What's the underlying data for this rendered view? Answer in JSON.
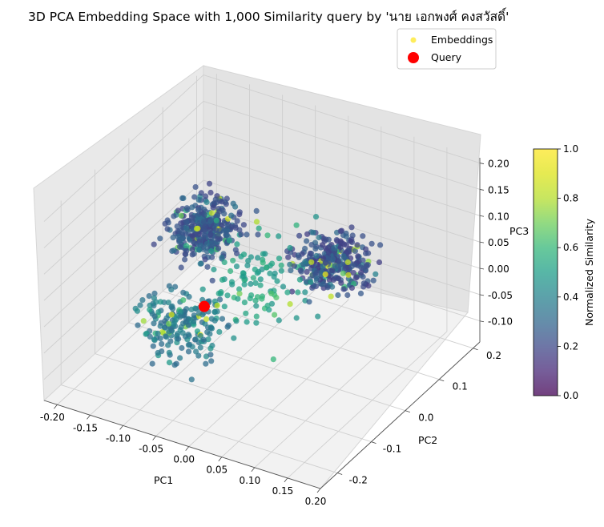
{
  "chart_data": {
    "type": "scatter",
    "projection": "3d",
    "title": "3D PCA Embedding Space with 1,000 Similarity query by 'นาย เอกพงศ์ คงสวัสดิ์'",
    "xlabel": "PC1",
    "ylabel": "PC2",
    "zlabel": "PC3",
    "xlim": [
      -0.22,
      0.2
    ],
    "ylim": [
      -0.25,
      0.22
    ],
    "zlim": [
      -0.14,
      0.21
    ],
    "xticks": [
      "-0.20",
      "-0.15",
      "-0.10",
      "-0.05",
      "0.00",
      "0.05",
      "0.10",
      "0.15",
      "0.20"
    ],
    "yticks": [
      "-0.2",
      "-0.1",
      "0.0",
      "0.1",
      "0.2"
    ],
    "zticks": [
      "-0.10",
      "-0.05",
      "0.00",
      "0.05",
      "0.10",
      "0.15",
      "0.20"
    ],
    "grid": true,
    "colormap": "viridis",
    "colorbar": {
      "label": "Normalized Similarity",
      "range": [
        0.0,
        1.0
      ],
      "ticks": [
        "0.0",
        "0.2",
        "0.4",
        "0.6",
        "0.8",
        "1.0"
      ]
    },
    "legend": {
      "placement": "top-right",
      "entries": [
        {
          "label": "Embeddings",
          "marker": "circle",
          "color": "#fde725"
        },
        {
          "label": "Query",
          "marker": "circle",
          "color": "#ff0000"
        }
      ]
    },
    "query": {
      "name": "Query",
      "x": -0.09,
      "y": -0.03,
      "z": -0.04,
      "color": "#ff0000"
    },
    "series": [
      {
        "name": "Embeddings",
        "point_count": 1000,
        "clusters": [
          {
            "center": [
              -0.12,
              0.03,
              0.06
            ],
            "spread": [
              0.03,
              0.04,
              0.03
            ],
            "count": 360,
            "similarity": 0.18
          },
          {
            "center": [
              0.06,
              0.06,
              0.05
            ],
            "spread": [
              0.035,
              0.04,
              0.03
            ],
            "count": 330,
            "similarity": 0.16
          },
          {
            "center": [
              -0.08,
              -0.12,
              -0.02
            ],
            "spread": [
              0.04,
              0.04,
              0.04
            ],
            "count": 190,
            "similarity": 0.3
          },
          {
            "center": [
              -0.02,
              0.0,
              0.02
            ],
            "spread": [
              0.06,
              0.06,
              0.05
            ],
            "count": 120,
            "similarity": 0.45
          }
        ]
      }
    ]
  }
}
